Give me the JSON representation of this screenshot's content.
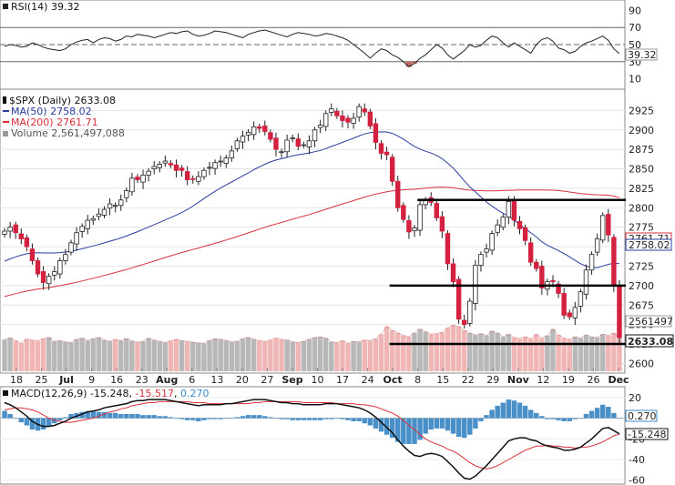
{
  "chart_data": [
    {
      "type": "line",
      "panel": "rsi",
      "legend": {
        "name": "RSI(14)",
        "value": "39.32"
      },
      "ylim": [
        0,
        100
      ],
      "y_ticks": [
        10,
        30,
        50,
        70,
        90
      ],
      "reference_lines": [
        30,
        50,
        70
      ],
      "last_value_label": "39.32",
      "colors": {
        "line": "#222222",
        "oversold_fill": "#c86a6a"
      },
      "series": [
        {
          "name": "RSI(14)",
          "values": [
            48,
            50,
            49,
            47,
            48,
            52,
            50,
            47,
            45,
            44,
            43,
            45,
            50,
            53,
            55,
            56,
            52,
            56,
            58,
            57,
            54,
            56,
            60,
            59,
            62,
            61,
            60,
            58,
            60,
            62,
            64,
            63,
            65,
            66,
            62,
            60,
            61,
            63,
            66,
            65,
            64,
            62,
            60,
            58,
            62,
            64,
            66,
            67,
            65,
            63,
            61,
            59,
            62,
            64,
            63,
            62,
            60,
            61,
            63,
            62,
            60,
            58,
            55,
            50,
            45,
            40,
            34,
            40,
            45,
            43,
            38,
            35,
            30,
            24,
            28,
            34,
            38,
            44,
            50,
            46,
            38,
            33,
            38,
            43,
            50,
            47,
            49,
            55,
            60,
            58,
            52,
            47,
            52,
            48,
            44,
            40,
            50,
            56,
            58,
            54,
            46,
            44,
            40,
            42,
            48,
            52,
            54,
            57,
            60,
            55,
            45,
            39.32
          ]
        }
      ]
    },
    {
      "type": "candlestick",
      "panel": "price",
      "legend": [
        {
          "name": "$SPX (Daily)",
          "value": "2633.08",
          "color": "#111111"
        },
        {
          "name": "MA(50)",
          "value": "2758.02",
          "color": "#2a3d9e"
        },
        {
          "name": "MA(200)",
          "value": "2761.71",
          "color": "#d9303a"
        },
        {
          "name": "Volume",
          "value": "2,561,497,088",
          "color": "#555555"
        }
      ],
      "ylim": [
        2590,
        2950
      ],
      "y_ticks": [
        2600,
        2625,
        2650,
        2675,
        2700,
        2725,
        2750,
        2775,
        2800,
        2825,
        2850,
        2875,
        2900,
        2925
      ],
      "x_tick_labels": [
        "18",
        "25",
        "Jul",
        "9",
        "16",
        "23",
        "Aug",
        "6",
        "13",
        "20",
        "27",
        "Sep",
        "10",
        "17",
        "24",
        "Oct",
        "8",
        "15",
        "22",
        "29",
        "Nov",
        "12",
        "19",
        "26",
        "Dec"
      ],
      "right_labels": {
        "ma200": "2761.71",
        "ma50": "2758.02",
        "volume": "2561497",
        "last": "2633.08"
      },
      "colors": {
        "up": "#ffffff",
        "down": "#d4213f",
        "wick": "#222222",
        "ma50": "#2a3d9e",
        "ma200": "#d9303a",
        "vol_up": "#b8b8b8",
        "vol_down": "#f0b6b6",
        "volume_line": "#c05050"
      },
      "horizontal_levels": [
        2810,
        2700,
        2625
      ],
      "closes": [
        2770,
        2775,
        2768,
        2760,
        2750,
        2732,
        2715,
        2704,
        2712,
        2718,
        2732,
        2740,
        2755,
        2768,
        2776,
        2784,
        2786,
        2792,
        2798,
        2805,
        2803,
        2810,
        2822,
        2838,
        2836,
        2842,
        2847,
        2853,
        2856,
        2860,
        2855,
        2848,
        2848,
        2836,
        2837,
        2840,
        2848,
        2852,
        2858,
        2860,
        2864,
        2873,
        2886,
        2892,
        2897,
        2904,
        2902,
        2898,
        2888,
        2875,
        2872,
        2887,
        2890,
        2879,
        2881,
        2886,
        2900,
        2906,
        2921,
        2927,
        2918,
        2912,
        2910,
        2915,
        2930,
        2923,
        2905,
        2884,
        2870,
        2868,
        2834,
        2800,
        2785,
        2769,
        2774,
        2804,
        2810,
        2807,
        2787,
        2770,
        2728,
        2705,
        2657,
        2650,
        2680,
        2726,
        2740,
        2747,
        2767,
        2778,
        2788,
        2808,
        2784,
        2773,
        2758,
        2730,
        2722,
        2697,
        2705,
        2705,
        2690,
        2662,
        2660,
        2672,
        2692,
        2720,
        2740,
        2760,
        2790,
        2765,
        2700,
        2633.08
      ],
      "volume": [
        2480,
        2620,
        2390,
        2200,
        2520,
        2450,
        2380,
        2560,
        2650,
        2350,
        2400,
        2300,
        2250,
        2500,
        2600,
        2400,
        2550,
        2650,
        2450,
        2350,
        2500,
        2400,
        2560,
        2380,
        2280,
        2350,
        2600,
        2450,
        2350,
        2250,
        2390,
        2500,
        2400,
        2350,
        2280,
        2220,
        2180,
        2400,
        2550,
        2500,
        2420,
        2300,
        2350,
        2550,
        2650,
        2500,
        2400,
        2350,
        2450,
        2600,
        2500,
        2450,
        2300,
        2250,
        2350,
        2500,
        2650,
        2700,
        2600,
        2300,
        2250,
        2400,
        2200,
        2350,
        2300,
        2450,
        2400,
        2550,
        2900,
        3500,
        3200,
        3000,
        2800,
        2700,
        3000,
        3300,
        3100,
        2900,
        2950,
        3050,
        3400,
        3600,
        3500,
        3200,
        3000,
        2850,
        2950,
        2800,
        3150,
        3000,
        2700,
        2900,
        2650,
        2550,
        2700,
        2550,
        2900,
        2600,
        2800,
        3300,
        2850,
        2600,
        2500,
        2700,
        2600,
        2850,
        2700,
        2650,
        2900,
        2800,
        3000,
        2561.5
      ]
    },
    {
      "type": "line",
      "panel": "macd",
      "legend": [
        {
          "name": "MACD(12,26,9)",
          "value": "-15.248",
          "color": "#111111"
        },
        {
          "name": "",
          "value": "-15.517",
          "color": "#d9303a"
        },
        {
          "name": "",
          "value": "0.270",
          "color": "#3a88c8"
        }
      ],
      "ylim": [
        -62,
        26
      ],
      "y_ticks": [
        -60,
        -40,
        -20,
        0,
        20
      ],
      "right_labels": {
        "histogram": "0.270",
        "macd": "-15.248"
      },
      "colors": {
        "macd": "#111111",
        "signal": "#d9303a",
        "histogram": "#4a90c8"
      },
      "series": [
        {
          "name": "MACD(12,26,9)",
          "values": [
            15,
            13,
            10,
            6,
            2,
            -3,
            -6,
            -8,
            -8,
            -7,
            -5,
            -3,
            0,
            2,
            4,
            6,
            7,
            8,
            10,
            11,
            12,
            13,
            14,
            16,
            17,
            17,
            18,
            18,
            18,
            18,
            17,
            16,
            15,
            14,
            13,
            12,
            13,
            13,
            13,
            13,
            14,
            14,
            15,
            16,
            17,
            18,
            18,
            18,
            17,
            16,
            15,
            15,
            14,
            14,
            13,
            13,
            13,
            13,
            14,
            14,
            14,
            13,
            12,
            11,
            10,
            8,
            5,
            1,
            -4,
            -9,
            -14,
            -21,
            -27,
            -32,
            -36,
            -37,
            -35,
            -34,
            -35,
            -37,
            -42,
            -47,
            -53,
            -58,
            -59,
            -56,
            -51,
            -46,
            -40,
            -34,
            -28,
            -22,
            -20,
            -19,
            -19,
            -21,
            -22,
            -25,
            -27,
            -28,
            -29,
            -31,
            -31,
            -30,
            -28,
            -24,
            -20,
            -15,
            -10,
            -9,
            -12,
            -15.248
          ]
        },
        {
          "name": "",
          "values": [
            8,
            9,
            10,
            10,
            9,
            8,
            6,
            3,
            0,
            -2,
            -3,
            -4,
            -4,
            -3,
            -2,
            -1,
            0,
            2,
            4,
            6,
            7,
            9,
            10,
            12,
            13,
            14,
            15,
            15,
            16,
            16,
            16,
            16,
            16,
            16,
            15,
            15,
            15,
            14,
            14,
            14,
            14,
            14,
            14,
            14,
            14,
            15,
            15,
            16,
            16,
            16,
            16,
            16,
            16,
            16,
            15,
            15,
            15,
            15,
            15,
            15,
            14,
            14,
            14,
            14,
            13,
            13,
            12,
            11,
            9,
            7,
            5,
            2,
            -2,
            -7,
            -11,
            -16,
            -20,
            -23,
            -25,
            -27,
            -30,
            -32,
            -35,
            -39,
            -43,
            -46,
            -48,
            -49,
            -48,
            -46,
            -43,
            -40,
            -37,
            -34,
            -31,
            -29,
            -27,
            -27,
            -26,
            -27,
            -27,
            -28,
            -28,
            -29,
            -28,
            -28,
            -27,
            -25,
            -23,
            -20,
            -17,
            -15.517
          ]
        },
        {
          "name": "",
          "values": [
            7,
            4,
            0,
            -4,
            -7,
            -11,
            -12,
            -11,
            -8,
            -5,
            -2,
            1,
            4,
            5,
            6,
            7,
            7,
            6,
            6,
            5,
            5,
            4,
            4,
            4,
            4,
            3,
            3,
            3,
            2,
            2,
            1,
            0,
            -1,
            -2,
            -2,
            -3,
            -2,
            -1,
            -1,
            -1,
            0,
            0,
            1,
            2,
            3,
            3,
            3,
            2,
            1,
            0,
            -1,
            -1,
            -2,
            -2,
            -2,
            -2,
            -2,
            -2,
            -1,
            -1,
            0,
            -1,
            -2,
            -3,
            -3,
            -5,
            -7,
            -10,
            -13,
            -16,
            -19,
            -23,
            -25,
            -25,
            -25,
            -21,
            -15,
            -11,
            -10,
            -10,
            -12,
            -15,
            -18,
            -19,
            -16,
            -10,
            -3,
            3,
            8,
            12,
            15,
            18,
            17,
            15,
            12,
            8,
            5,
            2,
            -1,
            -1,
            -2,
            -3,
            -3,
            -1,
            0,
            4,
            7,
            10,
            13,
            11,
            5,
            0.27
          ]
        }
      ]
    }
  ]
}
